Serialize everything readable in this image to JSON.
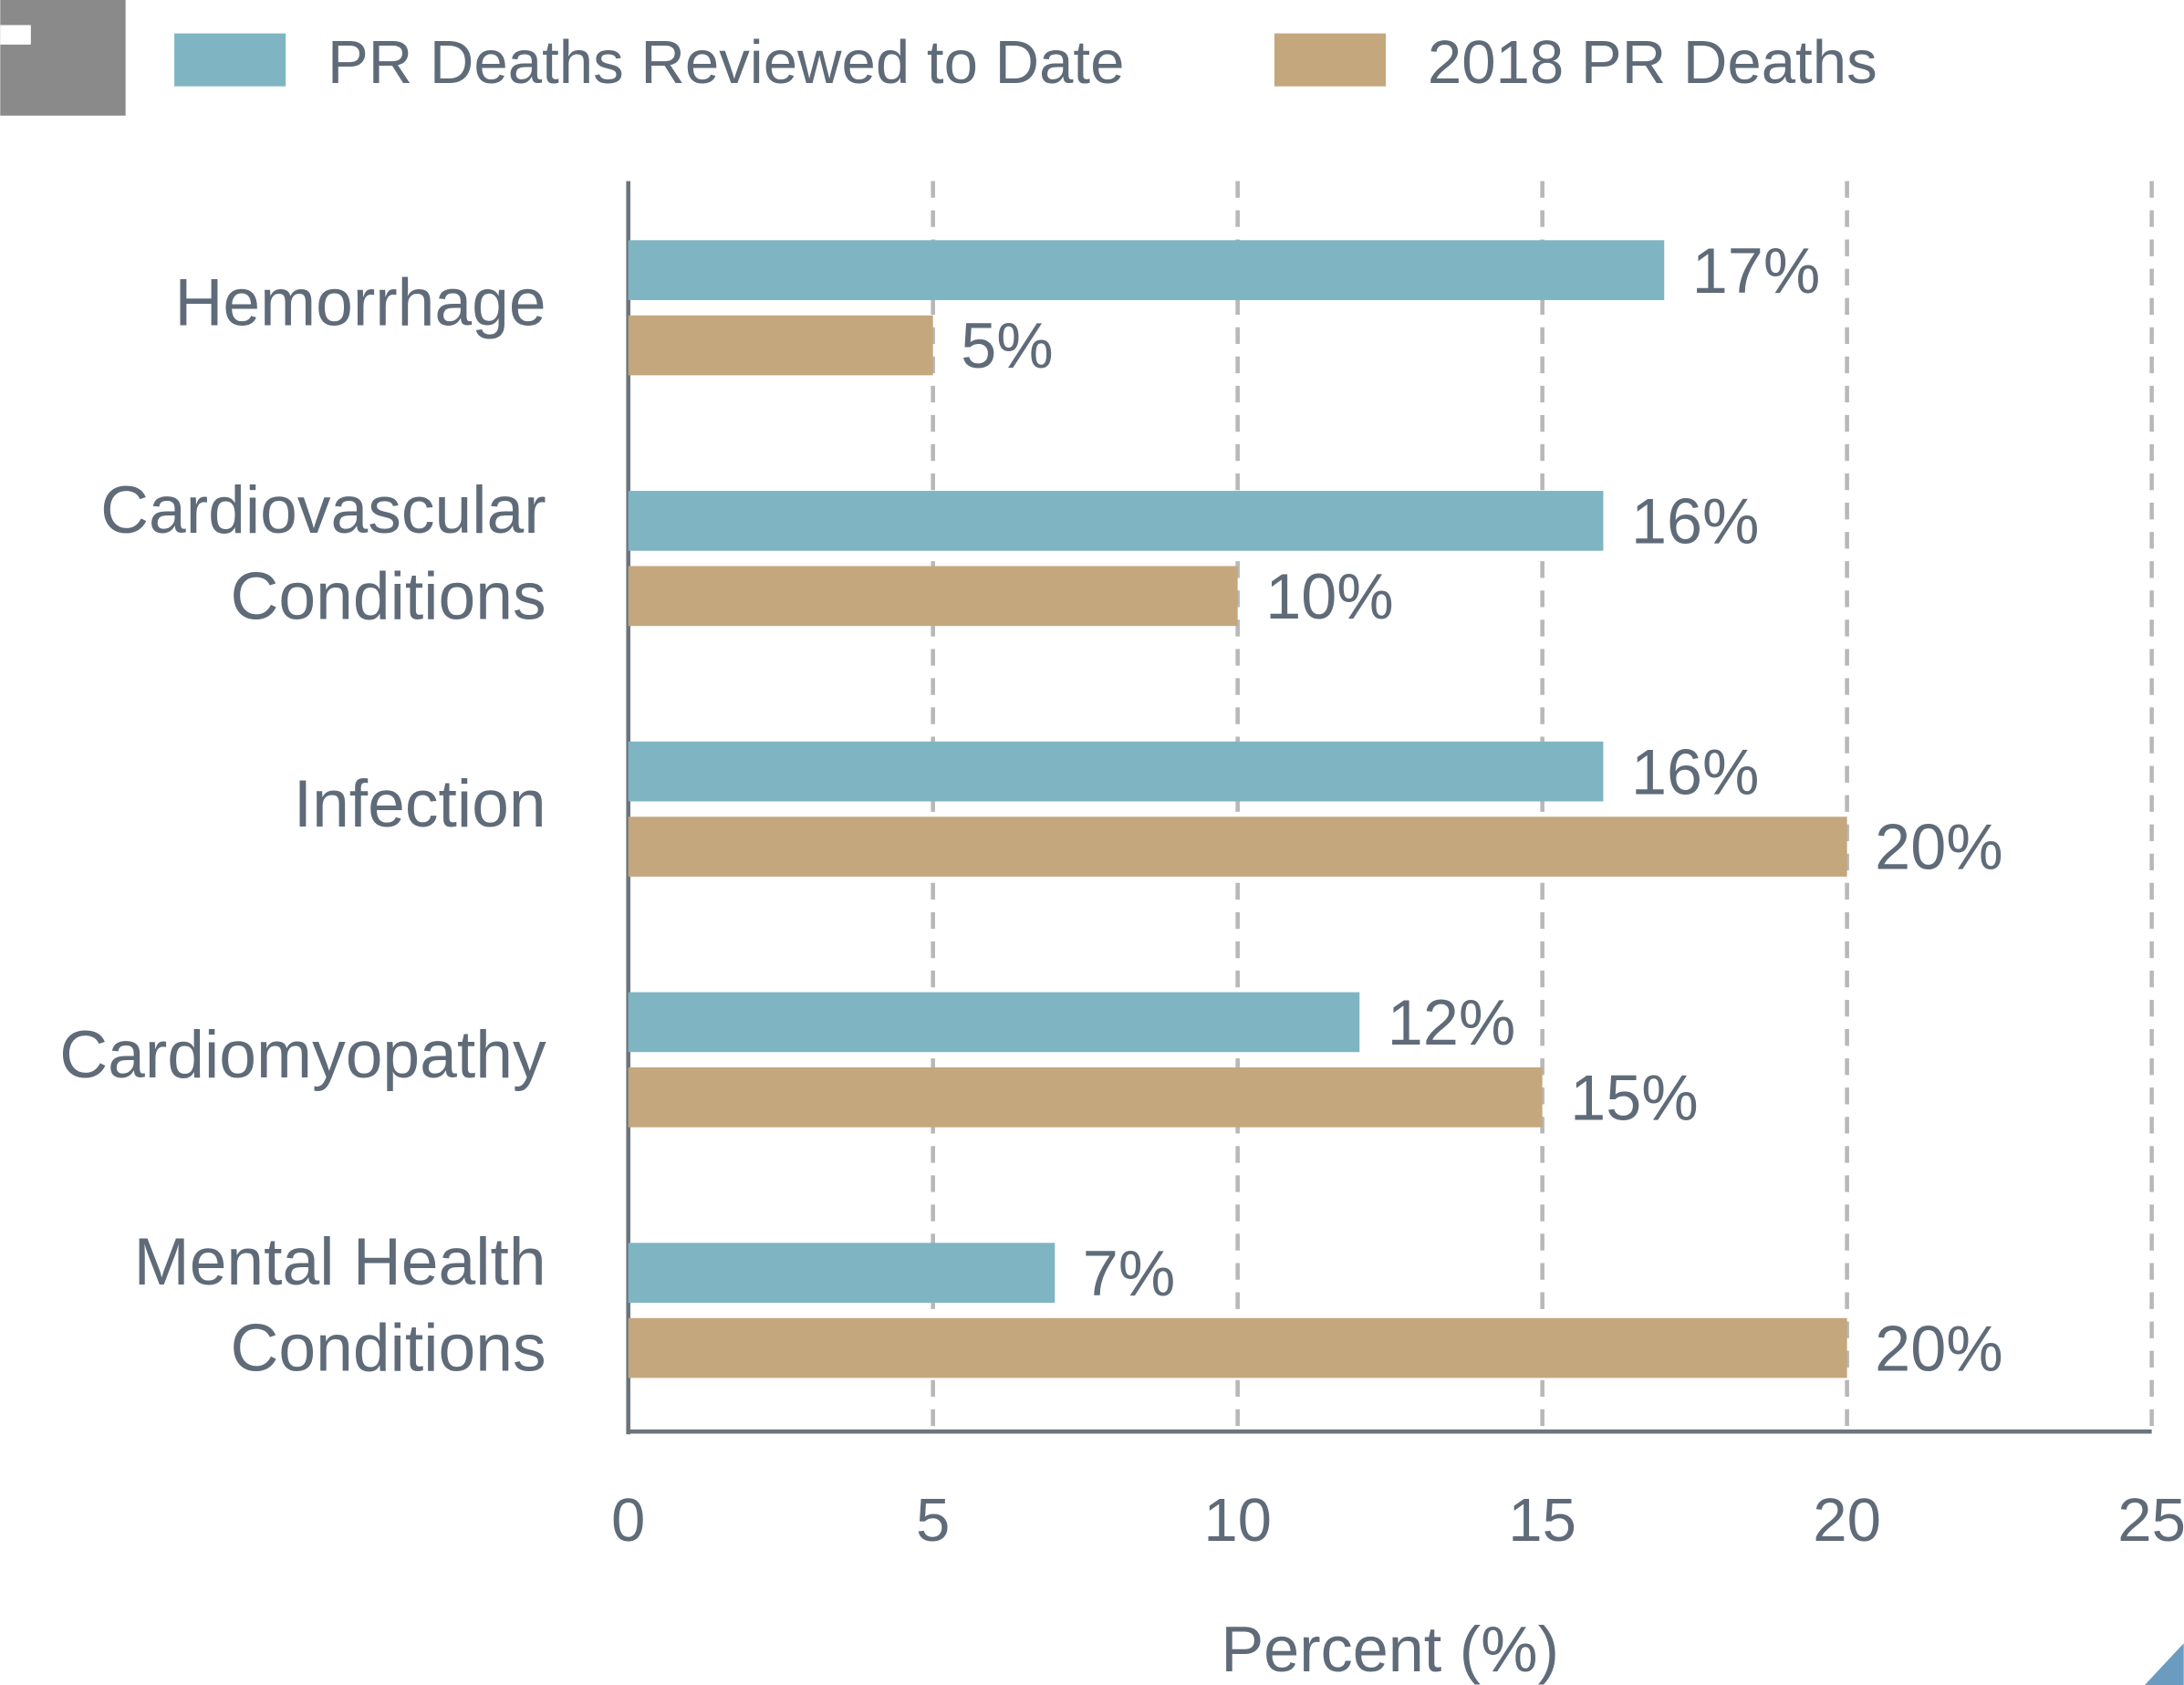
{
  "chart_data": {
    "type": "hbar",
    "categories": [
      "Hemorrhage",
      "Cardiovascular\nConditions",
      "Infection",
      "Cardiomyopathy",
      "Mental Health\nConditions"
    ],
    "series": [
      {
        "name": "PR Deaths Reviewed to Date",
        "color": "#7fb5c2",
        "values": [
          17,
          16,
          16,
          12,
          7
        ],
        "value_labels": [
          "17%",
          "16%",
          "16%",
          "12%",
          "7%"
        ]
      },
      {
        "name": "2018 PR Deaths",
        "color": "#c4a77d",
        "values": [
          5,
          10,
          20,
          15,
          20
        ],
        "value_labels": [
          "5%",
          "10%",
          "20%",
          "15%",
          "20%"
        ]
      }
    ],
    "xlabel": "Percent (%)",
    "xlim": [
      0,
      25
    ],
    "xticks": [
      0,
      5,
      10,
      15,
      20,
      25
    ],
    "grid": true,
    "legend": "top"
  }
}
